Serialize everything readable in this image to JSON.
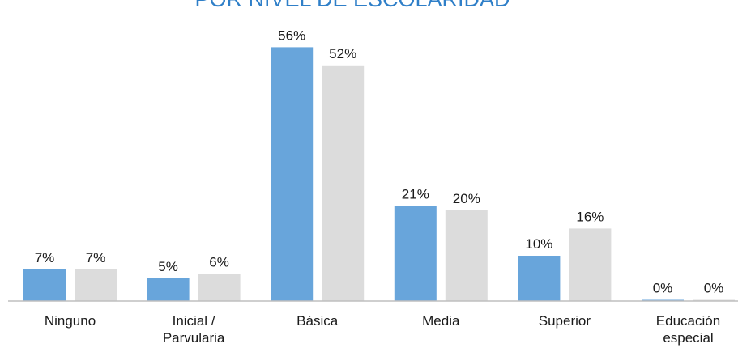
{
  "chart_data": {
    "type": "bar",
    "title": "POR NIVEL DE ESCOLARIDAD",
    "categories": [
      "Ninguno",
      "Inicial / Parvularia",
      "Básica",
      "Media",
      "Superior",
      "Educación especial"
    ],
    "category_lines": [
      [
        "Ninguno"
      ],
      [
        "Inicial /",
        "Parvularia"
      ],
      [
        "Básica"
      ],
      [
        "Media"
      ],
      [
        "Superior"
      ],
      [
        "Educación",
        "especial"
      ]
    ],
    "series": [
      {
        "values": [
          7,
          5,
          56,
          21,
          10,
          0
        ],
        "labels": [
          "7%",
          "5%",
          "56%",
          "21%",
          "10%",
          "0%"
        ],
        "color": "#68a5db"
      },
      {
        "values": [
          7,
          6,
          52,
          20,
          16,
          0
        ],
        "labels": [
          "7%",
          "6%",
          "52%",
          "20%",
          "16%",
          "0%"
        ],
        "color": "#dcdcdc"
      }
    ],
    "ylim": [
      0,
      60
    ],
    "grid": false,
    "legend": "none",
    "colors": {
      "title": "#2f7fc8",
      "axis": "#bfbfbf",
      "text": "#1a1a1a"
    }
  }
}
